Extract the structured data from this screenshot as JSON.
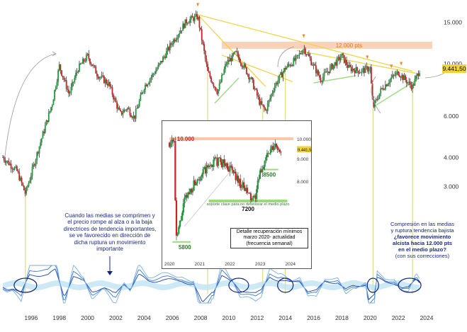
{
  "chart_data": [
    {
      "type": "line",
      "x": [
        1994.0,
        1995.0,
        1995.6,
        1996.5,
        1997.5,
        1998.0,
        1998.7,
        1999.3,
        2000.0,
        2000.7,
        2001.5,
        2002.3,
        2002.8,
        2003.3,
        2004.0,
        2005.0,
        2006.0,
        2007.0,
        2007.8,
        2008.5,
        2009.2,
        2009.8,
        2010.5,
        2011.0,
        2011.6,
        2012.2,
        2012.6,
        2013.2,
        2014.0,
        2014.8,
        2015.3,
        2016.0,
        2016.5,
        2017.2,
        2018.0,
        2018.5,
        2019.3,
        2020.0,
        2020.2,
        2020.8,
        2021.5,
        2022.0,
        2022.7,
        2023.0,
        2023.5
      ],
      "y": [
        4000,
        3500,
        2800,
        4300,
        6800,
        9800,
        7400,
        9500,
        10800,
        9000,
        8200,
        6100,
        6500,
        5900,
        8000,
        9700,
        12400,
        15200,
        15900,
        9200,
        7600,
        10000,
        11100,
        9900,
        8500,
        6800,
        6300,
        8000,
        9600,
        10500,
        11700,
        9800,
        8600,
        9600,
        10800,
        9600,
        9300,
        9600,
        6500,
        7800,
        8700,
        9200,
        8300,
        8000,
        9441.5
      ],
      "ylim": [
        2500,
        16500
      ],
      "xlim": [
        1993.8,
        2024.5
      ],
      "xticks": [
        "1996",
        "1998",
        "2000",
        "2002",
        "2004",
        "2006",
        "2008",
        "2010",
        "2012",
        "2014",
        "2016",
        "2018",
        "2020",
        "2022",
        "2024"
      ],
      "yticks": [
        "15.000",
        "10.000",
        "6.000",
        "4.000",
        "3.000"
      ],
      "price_label": "9.441,50",
      "resistance_label": "12.000 pts",
      "log_scale": true,
      "grid": false,
      "colors": {
        "up": "#1e9c3a",
        "down": "#cc2222",
        "trend": "#f0d03a",
        "support": "#9bd97c",
        "resistance": "#f8c8a8",
        "vertical": "#d6d36a"
      }
    },
    {
      "type": "line",
      "x": [
        2020.0,
        2020.15,
        2020.22,
        2020.5,
        2020.9,
        2021.3,
        2021.5,
        2021.8,
        2022.1,
        2022.4,
        2022.7,
        2022.8,
        2023.0,
        2023.2,
        2023.5,
        2023.7
      ],
      "y": [
        9800,
        10100,
        5800,
        7200,
        8100,
        8600,
        8900,
        8800,
        8400,
        7800,
        7300,
        7200,
        8300,
        9100,
        9600,
        9441.5
      ],
      "ylim": [
        5500,
        10500
      ],
      "xticks": [
        "2020",
        "2021",
        "2022",
        "2023",
        "2024"
      ],
      "yticks": [
        "10.000",
        "9.000",
        "8.000",
        "6.000"
      ],
      "levels": [
        "10.000",
        "8500",
        "7200",
        "5800"
      ],
      "price_label": "9.441,50",
      "support_note": "soporte clave para no deteriorar el medio plazo",
      "detail_note": [
        "Detalle recuperación mínimos",
        "marzo 2020- actualidad",
        "(frecuencia semanal)"
      ]
    }
  ],
  "annotations": {
    "left_note": [
      "Cuando las medias se comprimen y",
      "el precio rompe al alza o a la baja",
      "directrices de tendencia importantes,",
      "se ve favorecido en dirección de",
      "dicha ruptura un movimiento",
      "importante"
    ],
    "right_note": [
      "Compresión en las medias",
      "y ruptura tendencia bajista",
      "¿favorece movimiento",
      "alcista hacia 12.000 pts",
      "en el medio plazo?",
      "(con sus correcciones)"
    ]
  }
}
